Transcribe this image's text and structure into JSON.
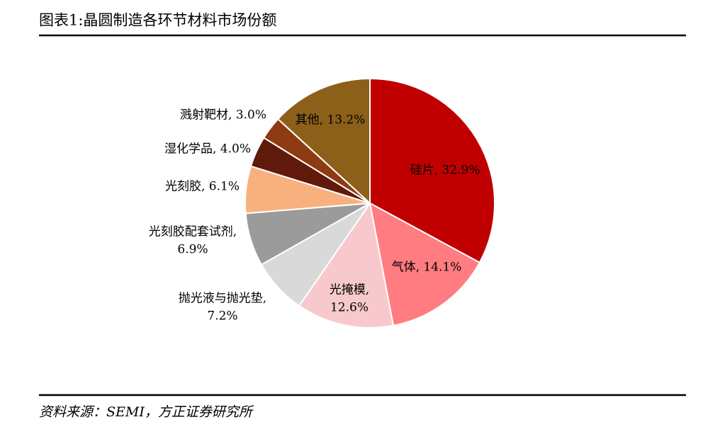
{
  "title": "图表1:晶圆制造各环节材料市场份额",
  "source": "资料来源：SEMI，方正证券研究所",
  "chart_data": {
    "type": "pie",
    "values": [
      32.9,
      14.1,
      12.6,
      7.2,
      6.9,
      6.1,
      4.0,
      3.0,
      13.2
    ],
    "labels": [
      [
        "硅片, 32.9%"
      ],
      [
        "气体, 14.1%"
      ],
      [
        "光掩模,",
        "12.6%"
      ],
      [
        "抛光液与抛光垫,",
        "7.2%"
      ],
      [
        "光刻胶配套试剂,",
        "6.9%"
      ],
      [
        "光刻胶, 6.1%"
      ],
      [
        "湿化学品, 4.0%"
      ],
      [
        "溅射靶材, 3.0%"
      ],
      [
        "其他, 13.2%"
      ]
    ],
    "colors": [
      "#C00000",
      "#FF7C80",
      "#F8C9CC",
      "#D9D9D9",
      "#9B9B9B",
      "#F9B07F",
      "#601A0C",
      "#8E3A12",
      "#8C6019"
    ]
  }
}
